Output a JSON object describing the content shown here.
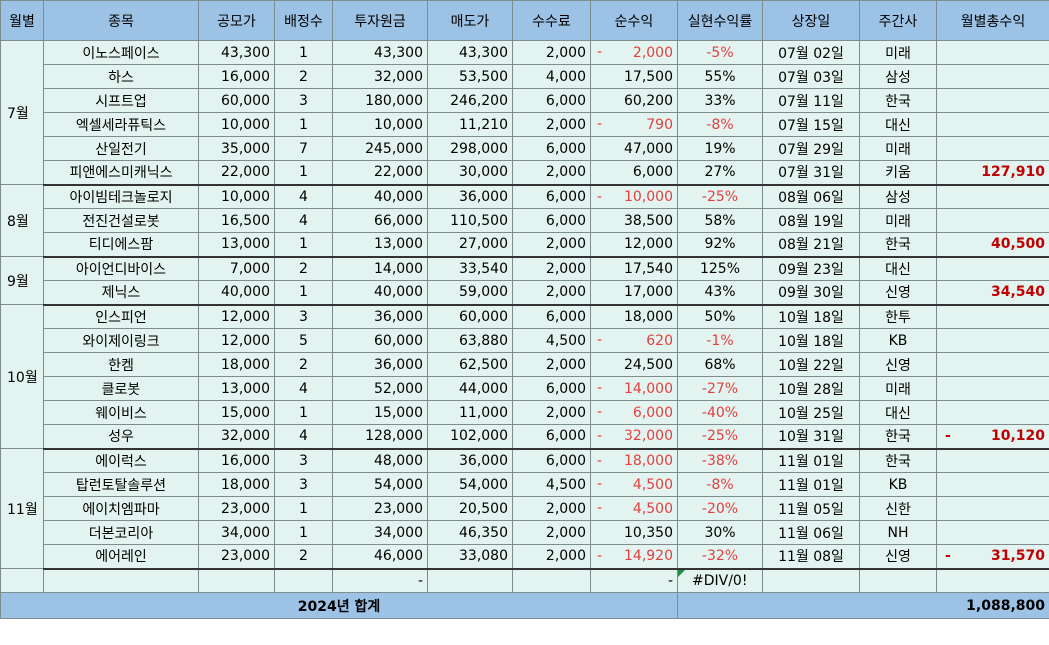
{
  "headers": [
    "월별",
    "종목",
    "공모가",
    "배정수",
    "투자원금",
    "매도가",
    "수수료",
    "순수익",
    "실현수익률",
    "상장일",
    "주간사",
    "월별총수익"
  ],
  "groups": [
    {
      "month": "7월",
      "total": "127,910",
      "total_negative": false,
      "rows": [
        {
          "name": "이노스페이스",
          "price": "43,300",
          "qty": "1",
          "invest": "43,300",
          "sell": "43,300",
          "fee": "2,000",
          "profit": "2,000",
          "negative": true,
          "rate": "-5%",
          "date": "07월 02일",
          "broker": "미래"
        },
        {
          "name": "하스",
          "price": "16,000",
          "qty": "2",
          "invest": "32,000",
          "sell": "53,500",
          "fee": "4,000",
          "profit": "17,500",
          "negative": false,
          "rate": "55%",
          "date": "07월 03일",
          "broker": "삼성"
        },
        {
          "name": "시프트업",
          "price": "60,000",
          "qty": "3",
          "invest": "180,000",
          "sell": "246,200",
          "fee": "6,000",
          "profit": "60,200",
          "negative": false,
          "rate": "33%",
          "date": "07월 11일",
          "broker": "한국"
        },
        {
          "name": "엑셀세라퓨틱스",
          "price": "10,000",
          "qty": "1",
          "invest": "10,000",
          "sell": "11,210",
          "fee": "2,000",
          "profit": "790",
          "negative": true,
          "rate": "-8%",
          "date": "07월 15일",
          "broker": "대신"
        },
        {
          "name": "산일전기",
          "price": "35,000",
          "qty": "7",
          "invest": "245,000",
          "sell": "298,000",
          "fee": "6,000",
          "profit": "47,000",
          "negative": false,
          "rate": "19%",
          "date": "07월 29일",
          "broker": "미래"
        },
        {
          "name": "피앤에스미캐닉스",
          "price": "22,000",
          "qty": "1",
          "invest": "22,000",
          "sell": "30,000",
          "fee": "2,000",
          "profit": "6,000",
          "negative": false,
          "rate": "27%",
          "date": "07월 31일",
          "broker": "키움"
        }
      ]
    },
    {
      "month": "8월",
      "total": "40,500",
      "total_negative": false,
      "rows": [
        {
          "name": "아이빔테크놀로지",
          "price": "10,000",
          "qty": "4",
          "invest": "40,000",
          "sell": "36,000",
          "fee": "6,000",
          "profit": "10,000",
          "negative": true,
          "rate": "-25%",
          "date": "08월 06일",
          "broker": "삼성"
        },
        {
          "name": "전진건설로봇",
          "price": "16,500",
          "qty": "4",
          "invest": "66,000",
          "sell": "110,500",
          "fee": "6,000",
          "profit": "38,500",
          "negative": false,
          "rate": "58%",
          "date": "08월 19일",
          "broker": "미래"
        },
        {
          "name": "티디에스팜",
          "price": "13,000",
          "qty": "1",
          "invest": "13,000",
          "sell": "27,000",
          "fee": "2,000",
          "profit": "12,000",
          "negative": false,
          "rate": "92%",
          "date": "08월 21일",
          "broker": "한국"
        }
      ]
    },
    {
      "month": "9월",
      "total": "34,540",
      "total_negative": false,
      "rows": [
        {
          "name": "아이언디바이스",
          "price": "7,000",
          "qty": "2",
          "invest": "14,000",
          "sell": "33,540",
          "fee": "2,000",
          "profit": "17,540",
          "negative": false,
          "rate": "125%",
          "date": "09월 23일",
          "broker": "대신"
        },
        {
          "name": "제닉스",
          "price": "40,000",
          "qty": "1",
          "invest": "40,000",
          "sell": "59,000",
          "fee": "2,000",
          "profit": "17,000",
          "negative": false,
          "rate": "43%",
          "date": "09월 30일",
          "broker": "신영"
        }
      ]
    },
    {
      "month": "10월",
      "total": "10,120",
      "total_negative": true,
      "rows": [
        {
          "name": "인스피언",
          "price": "12,000",
          "qty": "3",
          "invest": "36,000",
          "sell": "60,000",
          "fee": "6,000",
          "profit": "18,000",
          "negative": false,
          "rate": "50%",
          "date": "10월 18일",
          "broker": "한투"
        },
        {
          "name": "와이제이링크",
          "price": "12,000",
          "qty": "5",
          "invest": "60,000",
          "sell": "63,880",
          "fee": "4,500",
          "profit": "620",
          "negative": true,
          "rate": "-1%",
          "date": "10월 18일",
          "broker": "KB"
        },
        {
          "name": "한켐",
          "price": "18,000",
          "qty": "2",
          "invest": "36,000",
          "sell": "62,500",
          "fee": "2,000",
          "profit": "24,500",
          "negative": false,
          "rate": "68%",
          "date": "10월 22일",
          "broker": "신영"
        },
        {
          "name": "클로봇",
          "price": "13,000",
          "qty": "4",
          "invest": "52,000",
          "sell": "44,000",
          "fee": "6,000",
          "profit": "14,000",
          "negative": true,
          "rate": "-27%",
          "date": "10월 28일",
          "broker": "미래"
        },
        {
          "name": "웨이비스",
          "price": "15,000",
          "qty": "1",
          "invest": "15,000",
          "sell": "11,000",
          "fee": "2,000",
          "profit": "6,000",
          "negative": true,
          "rate": "-40%",
          "date": "10월 25일",
          "broker": "대신"
        },
        {
          "name": "성우",
          "price": "32,000",
          "qty": "4",
          "invest": "128,000",
          "sell": "102,000",
          "fee": "6,000",
          "profit": "32,000",
          "negative": true,
          "rate": "-25%",
          "date": "10월 31일",
          "broker": "한국"
        }
      ]
    },
    {
      "month": "11월",
      "total": "31,570",
      "total_negative": true,
      "rows": [
        {
          "name": "에이럭스",
          "price": "16,000",
          "qty": "3",
          "invest": "48,000",
          "sell": "36,000",
          "fee": "6,000",
          "profit": "18,000",
          "negative": true,
          "rate": "-38%",
          "date": "11월 01일",
          "broker": "한국"
        },
        {
          "name": "탑런토탈솔루션",
          "price": "18,000",
          "qty": "3",
          "invest": "54,000",
          "sell": "54,000",
          "fee": "4,500",
          "profit": "4,500",
          "negative": true,
          "rate": "-8%",
          "date": "11월 01일",
          "broker": "KB"
        },
        {
          "name": "에이치엠파마",
          "price": "23,000",
          "qty": "1",
          "invest": "23,000",
          "sell": "20,500",
          "fee": "2,000",
          "profit": "4,500",
          "negative": true,
          "rate": "-20%",
          "date": "11월 05일",
          "broker": "신한"
        },
        {
          "name": "더본코리아",
          "price": "34,000",
          "qty": "1",
          "invest": "34,000",
          "sell": "46,350",
          "fee": "2,000",
          "profit": "10,350",
          "negative": false,
          "rate": "30%",
          "date": "11월 06일",
          "broker": "NH"
        },
        {
          "name": "에어레인",
          "price": "23,000",
          "qty": "2",
          "invest": "46,000",
          "sell": "33,080",
          "fee": "2,000",
          "profit": "14,920",
          "negative": true,
          "rate": "-32%",
          "date": "11월 08일",
          "broker": "신영"
        }
      ]
    }
  ],
  "blank_row": {
    "invest": "-",
    "profit": "-",
    "rate": "#DIV/0!"
  },
  "footer": {
    "label": "2024년  합계",
    "total": "1,088,800"
  },
  "colors": {
    "header_bg": "#9cc2e5",
    "cell_bg": "#e3f4f0",
    "negative": "#e04040",
    "total_text": "#c00000"
  }
}
